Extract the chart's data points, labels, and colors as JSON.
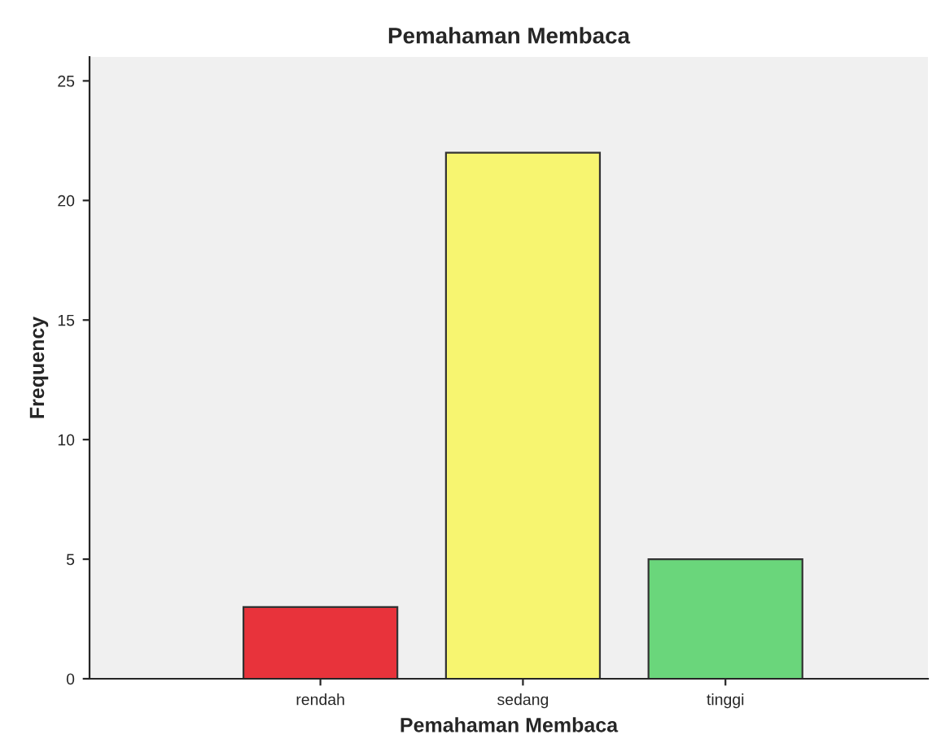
{
  "chart_data": {
    "type": "bar",
    "title": "Pemahaman Membaca",
    "xlabel": "Pemahaman Membaca",
    "ylabel": "Frequency",
    "categories": [
      "rendah",
      "sedang",
      "tinggi"
    ],
    "values": [
      3,
      22,
      5
    ],
    "colors": [
      "#e8333b",
      "#f7f570",
      "#6ad67b"
    ],
    "ylim": [
      0,
      26
    ],
    "yticks": [
      0,
      5,
      10,
      15,
      20,
      25
    ],
    "grid": false
  }
}
